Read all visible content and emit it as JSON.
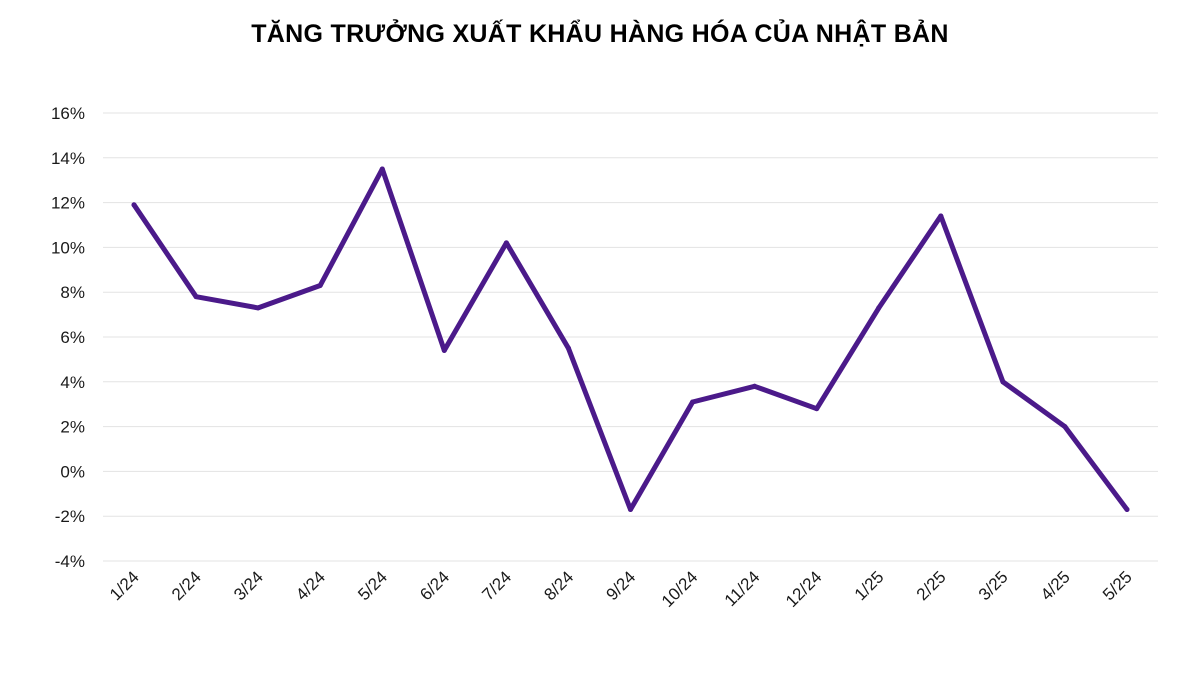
{
  "chart_data": {
    "type": "line",
    "title": "TĂNG TRƯỞNG XUẤT KHẨU HÀNG HÓA CỦA NHẬT BẢN",
    "xlabel": "",
    "ylabel": "",
    "categories": [
      "1/24",
      "2/24",
      "3/24",
      "4/24",
      "5/24",
      "6/24",
      "7/24",
      "8/24",
      "9/24",
      "10/24",
      "11/24",
      "12/24",
      "1/25",
      "2/25",
      "3/25",
      "4/25",
      "5/25"
    ],
    "series": [
      {
        "values": [
          11.9,
          7.8,
          7.3,
          8.3,
          13.5,
          5.4,
          10.2,
          5.5,
          -1.7,
          3.1,
          3.8,
          2.8,
          7.3,
          11.4,
          4.0,
          2.0,
          -1.7
        ],
        "color": "#4b1a8a"
      }
    ],
    "ylim": [
      -4,
      16
    ],
    "yticks": [
      -4,
      -2,
      0,
      2,
      4,
      6,
      8,
      10,
      12,
      14,
      16
    ],
    "ytick_suffix": "%",
    "grid": true,
    "legend": "none"
  }
}
